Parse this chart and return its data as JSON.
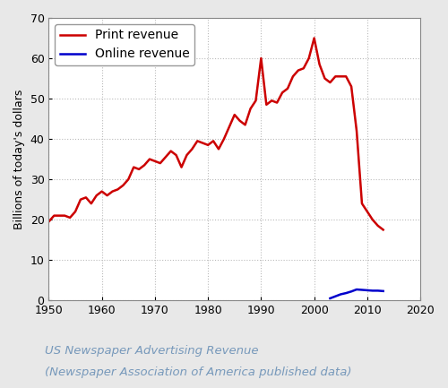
{
  "print_years": [
    1950,
    1951,
    1952,
    1953,
    1954,
    1955,
    1956,
    1957,
    1958,
    1959,
    1960,
    1961,
    1962,
    1963,
    1964,
    1965,
    1966,
    1967,
    1968,
    1969,
    1970,
    1971,
    1972,
    1973,
    1974,
    1975,
    1976,
    1977,
    1978,
    1979,
    1980,
    1981,
    1982,
    1983,
    1984,
    1985,
    1986,
    1987,
    1988,
    1989,
    1990,
    1991,
    1992,
    1993,
    1994,
    1995,
    1996,
    1997,
    1998,
    1999,
    2000,
    2001,
    2002,
    2003,
    2004,
    2005,
    2006,
    2007,
    2008,
    2009,
    2010,
    2011,
    2012,
    2013
  ],
  "print_values": [
    19.5,
    21.0,
    21.0,
    21.0,
    20.5,
    22.0,
    25.0,
    25.5,
    24.0,
    26.0,
    27.0,
    26.0,
    27.0,
    27.5,
    28.5,
    30.0,
    33.0,
    32.5,
    33.5,
    35.0,
    34.5,
    34.0,
    35.5,
    37.0,
    36.0,
    33.0,
    36.0,
    37.5,
    39.5,
    39.0,
    38.5,
    39.5,
    37.5,
    40.0,
    43.0,
    46.0,
    44.5,
    43.5,
    47.5,
    49.5,
    60.0,
    48.5,
    49.5,
    49.0,
    51.5,
    52.5,
    55.5,
    57.0,
    57.5,
    60.0,
    65.0,
    58.5,
    55.0,
    54.0,
    55.5,
    55.5,
    55.5,
    53.0,
    42.0,
    24.0,
    22.0,
    20.0,
    18.5,
    17.5
  ],
  "online_years": [
    2003,
    2004,
    2005,
    2006,
    2007,
    2008,
    2009,
    2010,
    2011,
    2012,
    2013
  ],
  "online_values": [
    0.5,
    1.0,
    1.5,
    1.8,
    2.2,
    2.7,
    2.6,
    2.5,
    2.4,
    2.4,
    2.3
  ],
  "print_color": "#cc0000",
  "online_color": "#0000cc",
  "line_width": 1.8,
  "title1": "US Newspaper Advertising Revenue",
  "title2": "(Newspaper Association of America published data)",
  "ylabel": "Billions of today's dollars",
  "xlim": [
    1950,
    2020
  ],
  "ylim": [
    0,
    70
  ],
  "yticks": [
    0,
    10,
    20,
    30,
    40,
    50,
    60,
    70
  ],
  "xticks": [
    1950,
    1960,
    1970,
    1980,
    1990,
    2000,
    2010,
    2020
  ],
  "legend_print": "Print revenue",
  "legend_online": "Online revenue",
  "fig_background": "#e8e8e8",
  "plot_background": "#ffffff",
  "grid_color": "#bbbbbb",
  "title_color": "#7799bb",
  "tick_labelsize": 9,
  "ylabel_fontsize": 9,
  "legend_fontsize": 10
}
